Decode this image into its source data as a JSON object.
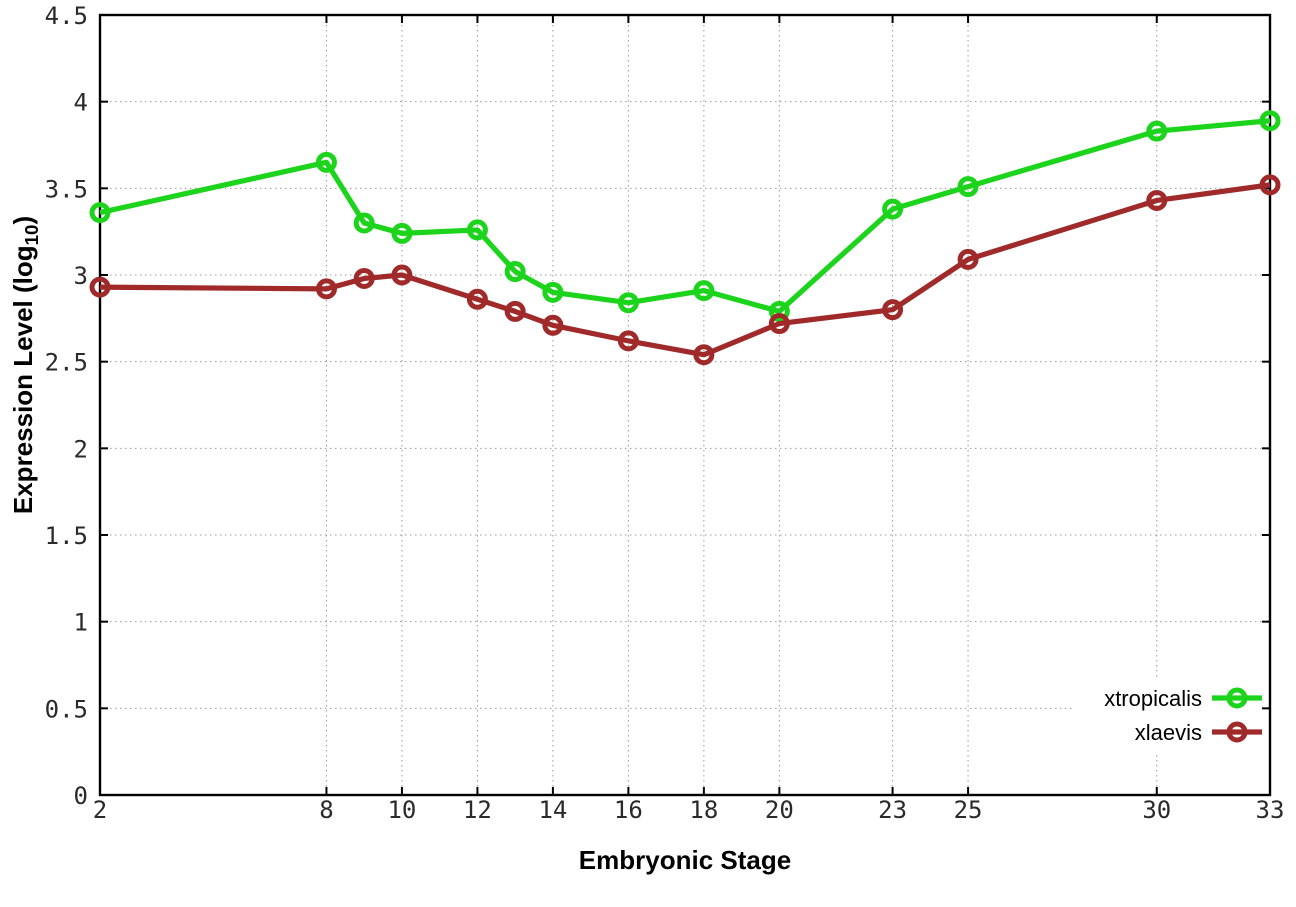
{
  "chart_data": {
    "type": "line",
    "title": "",
    "xlabel": "Embryonic Stage",
    "ylabel": "Expression Level (log10)",
    "ylabel_parts": {
      "main": "Expression Level (log",
      "sub": "10",
      "suffix": ")"
    },
    "xlim": [
      2,
      33
    ],
    "ylim": [
      0,
      4.5
    ],
    "x_ticks": [
      2,
      8,
      10,
      12,
      14,
      16,
      18,
      20,
      23,
      25,
      30,
      33
    ],
    "x_tick_labels": [
      "2",
      "8",
      "10",
      "12",
      "14",
      "16",
      "18",
      "20",
      "23",
      "25",
      "30",
      "33"
    ],
    "y_ticks": [
      0,
      0.5,
      1,
      1.5,
      2,
      2.5,
      3,
      3.5,
      4,
      4.5
    ],
    "y_tick_labels": [
      "0",
      "0.5",
      "1",
      "1.5",
      "2",
      "2.5",
      "3",
      "3.5",
      "4",
      "4.5"
    ],
    "grid": true,
    "legend_position": "bottom-right",
    "x": [
      2,
      8,
      9,
      10,
      12,
      13,
      14,
      16,
      18,
      20,
      23,
      25,
      30,
      33
    ],
    "series": [
      {
        "name": "xtropicalis",
        "color": "#1bd41b",
        "values": [
          3.36,
          3.65,
          3.3,
          3.24,
          3.26,
          3.02,
          2.9,
          2.84,
          2.91,
          2.79,
          3.38,
          3.51,
          3.83,
          3.89
        ]
      },
      {
        "name": "xlaevis",
        "color": "#a02a2a",
        "values": [
          2.93,
          2.92,
          2.98,
          3.0,
          2.86,
          2.79,
          2.71,
          2.62,
          2.54,
          2.72,
          2.8,
          3.09,
          3.43,
          3.52
        ]
      }
    ],
    "colors": {
      "border": "#000000",
      "grid": "#9a9a9a",
      "tick_label": "#2a2a2a"
    }
  }
}
